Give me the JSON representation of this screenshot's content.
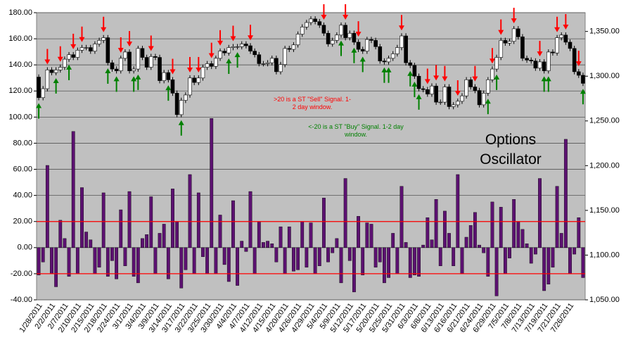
{
  "chart_data": {
    "type": "combo",
    "categories": [
      "1/28/2011",
      null,
      null,
      "2/2/2011",
      null,
      null,
      "2/7/2011",
      null,
      null,
      "2/10/2011",
      null,
      null,
      "2/15/2011",
      null,
      null,
      "2/18/2011",
      null,
      null,
      "2/24/2011",
      null,
      null,
      "3/1/2011",
      null,
      null,
      "3/4/2011",
      null,
      null,
      "3/9/2011",
      null,
      null,
      "3/14/2011",
      null,
      null,
      "3/17/2011",
      null,
      null,
      "3/22/2011",
      null,
      null,
      "3/25/2011",
      null,
      null,
      "3/30/2011",
      null,
      null,
      "4/4/2011",
      null,
      null,
      "4/7/2011",
      null,
      null,
      "4/12/2011",
      null,
      null,
      "4/15/2011",
      null,
      null,
      "4/20/2011",
      null,
      null,
      "4/26/2011",
      null,
      null,
      "4/29/2011",
      null,
      null,
      "5/4/2011",
      null,
      null,
      "5/9/2011",
      null,
      null,
      "5/12/2011",
      null,
      null,
      "5/17/2011",
      null,
      null,
      "5/20/2011",
      null,
      null,
      "5/25/2011",
      null,
      null,
      "5/31/2011",
      null,
      null,
      "6/3/2011",
      null,
      null,
      "6/8/2011",
      null,
      null,
      "6/13/2011",
      null,
      null,
      "6/16/2011",
      null,
      null,
      "6/21/2011",
      null,
      null,
      "6/24/2011",
      null,
      null,
      "6/29/2011",
      null,
      null,
      "7/5/2011",
      null,
      null,
      "7/8/2011",
      null,
      null,
      "7/13/2011",
      null,
      null,
      "7/19/2011",
      null,
      null,
      "7/21/2011",
      null,
      null,
      "7/26/2011",
      null,
      null,
      null
    ],
    "bars": {
      "color": "#5c1171",
      "values": [
        -21,
        -11,
        63,
        -20,
        -30,
        21,
        7,
        -22,
        89,
        -20,
        46,
        12,
        6,
        -20,
        -15,
        42,
        -22,
        -10,
        -24,
        29,
        -14,
        43,
        -22,
        -27,
        7,
        10,
        39,
        -20,
        11,
        18,
        -24,
        45,
        20,
        -31,
        -17,
        56,
        -20,
        42,
        -7,
        -20,
        99,
        -20,
        25,
        -13,
        -26,
        36,
        -29,
        5,
        -3,
        43,
        -20,
        20,
        4,
        5,
        3,
        -11,
        16,
        -20,
        16,
        -18,
        -17,
        20,
        -15,
        19,
        -20,
        -14,
        38,
        -11,
        -4,
        7,
        -27,
        53,
        -10,
        -34,
        24,
        -21,
        19,
        18,
        -15,
        -11,
        -27,
        -23,
        11,
        -20,
        47,
        4,
        -23,
        -21,
        -22,
        2,
        23,
        6,
        37,
        -14,
        28,
        11,
        -14,
        56,
        -20,
        8,
        17,
        27,
        2,
        -4,
        -22,
        35,
        -37,
        31,
        -20,
        -8,
        37,
        20,
        14,
        3,
        -12,
        -5,
        53,
        -33,
        -28,
        -15,
        47,
        11,
        83,
        -20,
        -5,
        23,
        -23
      ]
    },
    "candles": {
      "axis": "y2",
      "up_color": "#ffffff",
      "down_color": "#000000",
      "open": [
        1299,
        1276,
        1286,
        1307,
        1304,
        1307,
        1310,
        1319,
        1324,
        1321,
        1329,
        1332,
        1332,
        1328,
        1336,
        1340,
        1343,
        1315,
        1308,
        1306,
        1320,
        1327,
        1306,
        1308,
        1331,
        1321,
        1310,
        1322,
        1321,
        1295,
        1304,
        1296,
        1281,
        1257,
        1273,
        1279,
        1298,
        1293,
        1298,
        1310,
        1314,
        1311,
        1320,
        1328,
        1326,
        1332,
        1333,
        1333,
        1336,
        1334,
        1328,
        1324,
        1314,
        1314,
        1315,
        1320,
        1305,
        1313,
        1331,
        1330,
        1335,
        1347,
        1355,
        1360,
        1364,
        1361,
        1357,
        1348,
        1336,
        1340,
        1346,
        1357,
        1343,
        1348,
        1338,
        1330,
        1328,
        1341,
        1340,
        1333,
        1317,
        1316,
        1320,
        1325,
        1332,
        1345,
        1315,
        1312,
        1300,
        1286,
        1285,
        1280,
        1289,
        1271,
        1271,
        1288,
        1266,
        1268,
        1272,
        1278,
        1296,
        1288,
        1284,
        1268,
        1281,
        1296,
        1308,
        1321,
        1340,
        1337,
        1339,
        1353,
        1344,
        1320,
        1318,
        1317,
        1309,
        1316,
        1306,
        1327,
        1326,
        1343,
        1346,
        1338,
        1331,
        1305,
        1301
      ],
      "high": [
        1302,
        1289,
        1310,
        1310,
        1310,
        1313,
        1322,
        1327,
        1327,
        1332,
        1335,
        1335,
        1335,
        1339,
        1343,
        1346,
        1346,
        1318,
        1311,
        1323,
        1330,
        1330,
        1311,
        1334,
        1334,
        1324,
        1325,
        1325,
        1324,
        1307,
        1307,
        1299,
        1284,
        1276,
        1282,
        1301,
        1301,
        1301,
        1313,
        1317,
        1317,
        1323,
        1331,
        1331,
        1335,
        1336,
        1336,
        1339,
        1339,
        1337,
        1331,
        1327,
        1317,
        1318,
        1323,
        1323,
        1316,
        1334,
        1334,
        1338,
        1350,
        1358,
        1363,
        1367,
        1367,
        1364,
        1360,
        1351,
        1343,
        1349,
        1360,
        1360,
        1351,
        1351,
        1341,
        1333,
        1344,
        1344,
        1343,
        1336,
        1320,
        1323,
        1328,
        1335,
        1348,
        1348,
        1318,
        1315,
        1303,
        1289,
        1288,
        1292,
        1292,
        1274,
        1291,
        1291,
        1271,
        1275,
        1281,
        1299,
        1299,
        1291,
        1287,
        1284,
        1299,
        1311,
        1324,
        1343,
        1343,
        1342,
        1356,
        1356,
        1347,
        1323,
        1321,
        1320,
        1319,
        1319,
        1330,
        1330,
        1346,
        1349,
        1349,
        1341,
        1334,
        1308,
        1304
      ],
      "low": [
        1273,
        1273,
        1283,
        1301,
        1301,
        1304,
        1307,
        1316,
        1318,
        1318,
        1326,
        1329,
        1325,
        1325,
        1333,
        1337,
        1312,
        1305,
        1303,
        1303,
        1317,
        1303,
        1303,
        1305,
        1318,
        1307,
        1307,
        1318,
        1292,
        1292,
        1293,
        1278,
        1254,
        1254,
        1270,
        1276,
        1290,
        1290,
        1295,
        1307,
        1308,
        1308,
        1317,
        1323,
        1323,
        1329,
        1330,
        1330,
        1331,
        1325,
        1321,
        1311,
        1311,
        1311,
        1312,
        1302,
        1302,
        1310,
        1327,
        1327,
        1332,
        1344,
        1352,
        1357,
        1358,
        1354,
        1345,
        1333,
        1333,
        1337,
        1343,
        1340,
        1340,
        1335,
        1327,
        1325,
        1325,
        1337,
        1330,
        1314,
        1313,
        1313,
        1317,
        1322,
        1329,
        1312,
        1309,
        1297,
        1283,
        1282,
        1277,
        1277,
        1268,
        1268,
        1268,
        1263,
        1263,
        1265,
        1269,
        1275,
        1285,
        1281,
        1265,
        1265,
        1278,
        1293,
        1305,
        1318,
        1334,
        1334,
        1336,
        1341,
        1317,
        1315,
        1314,
        1306,
        1306,
        1303,
        1303,
        1323,
        1323,
        1340,
        1335,
        1328,
        1302,
        1298,
        1289
      ],
      "close": [
        1276,
        1286,
        1307,
        1304,
        1307,
        1310,
        1319,
        1324,
        1321,
        1329,
        1332,
        1332,
        1328,
        1336,
        1340,
        1343,
        1315,
        1308,
        1306,
        1320,
        1327,
        1306,
        1308,
        1331,
        1321,
        1310,
        1322,
        1321,
        1295,
        1304,
        1296,
        1281,
        1257,
        1273,
        1279,
        1298,
        1293,
        1298,
        1310,
        1314,
        1311,
        1320,
        1328,
        1326,
        1332,
        1333,
        1333,
        1336,
        1334,
        1328,
        1324,
        1314,
        1314,
        1315,
        1320,
        1305,
        1313,
        1331,
        1330,
        1335,
        1347,
        1355,
        1360,
        1364,
        1361,
        1357,
        1348,
        1336,
        1340,
        1346,
        1357,
        1343,
        1348,
        1338,
        1330,
        1328,
        1341,
        1340,
        1333,
        1317,
        1316,
        1320,
        1325,
        1332,
        1345,
        1315,
        1312,
        1300,
        1286,
        1285,
        1280,
        1289,
        1271,
        1271,
        1288,
        1266,
        1268,
        1272,
        1278,
        1296,
        1288,
        1284,
        1268,
        1281,
        1296,
        1308,
        1321,
        1340,
        1337,
        1339,
        1353,
        1344,
        1320,
        1318,
        1317,
        1309,
        1316,
        1306,
        1327,
        1326,
        1343,
        1346,
        1338,
        1331,
        1305,
        1301,
        1292
      ]
    },
    "ylim": [
      -40,
      180
    ],
    "yticks": [
      {
        "value": -40,
        "label": "-40.00"
      },
      {
        "value": -20,
        "label": "-20.00"
      },
      {
        "value": 0,
        "label": "0.00"
      },
      {
        "value": 20,
        "label": "20.00"
      },
      {
        "value": 40,
        "label": "40.00"
      },
      {
        "value": 60,
        "label": "60.00"
      },
      {
        "value": 80,
        "label": "80.00"
      },
      {
        "value": 100,
        "label": "100.00"
      },
      {
        "value": 120,
        "label": "120.00"
      },
      {
        "value": 140,
        "label": "140.00"
      },
      {
        "value": 160,
        "label": "160.00"
      },
      {
        "value": 180,
        "label": "180.00"
      }
    ],
    "y2lim": [
      1050,
      1371
    ],
    "y2ticks": [
      {
        "value": 1050,
        "label": "1,050.00"
      },
      {
        "value": 1100,
        "label": "1,100.00"
      },
      {
        "value": 1150,
        "label": "1,150.00"
      },
      {
        "value": 1200,
        "label": "1,200.00"
      },
      {
        "value": 1250,
        "label": "1,250.00"
      },
      {
        "value": 1300,
        "label": "1,300.00"
      },
      {
        "value": 1350,
        "label": "1,350.00"
      }
    ],
    "grid": true,
    "thresholds": [
      {
        "value": 20,
        "color": "#ff0000"
      },
      {
        "value": -20,
        "color": "#ff0000"
      }
    ],
    "signal_colors": {
      "sell": "#ff0000",
      "buy": "#008000"
    },
    "annotations": [
      {
        "text": ">20 is a ST \"Sell\" Signal. 1-2 day window.",
        "color": "#ff0000"
      },
      {
        "text": "<-20 is a ST \"Buy\" Signal. 1-2 day window.",
        "color": "#008000"
      },
      {
        "text": "Options Oscillator",
        "color": "#000000"
      }
    ]
  }
}
